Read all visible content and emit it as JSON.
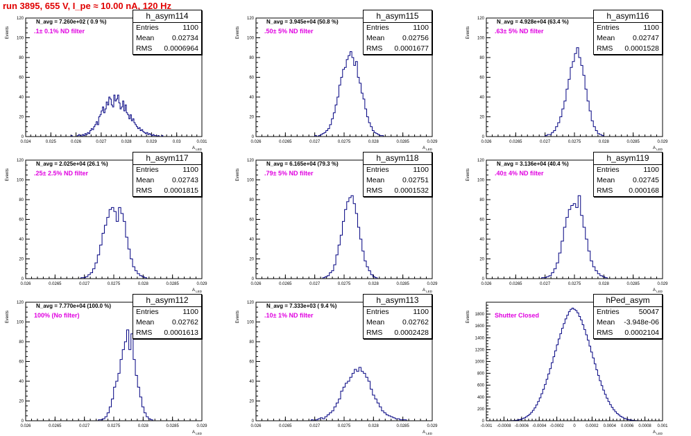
{
  "run_title": "run 3895,   655 V, I_pe ≈ 10.00 nA, 120 Hz",
  "axis_text": {
    "ylabel": "Events",
    "xlabel": "A",
    "xlabel_sub": "LED"
  },
  "chart_data": [
    {
      "type": "bar",
      "name": "h_asym114",
      "navg": "N_avg = 7.260e+02 ( 0.9 %)",
      "filter": ".1± 0.1% ND filter",
      "stats": {
        "entries": "1100",
        "mean": "0.02734",
        "rms": "0.0006964"
      },
      "xlim": [
        0.024,
        0.031
      ],
      "xticks": [
        "0.024",
        "0.025",
        "0.026",
        "0.027",
        "0.028",
        "0.029",
        "0.03",
        "0.031"
      ],
      "ylim": [
        0,
        120
      ],
      "yticks": [
        "0",
        "20",
        "40",
        "60",
        "80",
        "100",
        "120"
      ],
      "bins_x0": 0.0255,
      "bins_x1": 0.0295,
      "values": [
        0,
        0,
        0,
        0,
        0,
        0,
        1,
        0,
        0,
        0,
        0,
        1,
        2,
        1,
        0,
        2,
        1,
        3,
        2,
        4,
        3,
        6,
        8,
        7,
        10,
        12,
        15,
        12,
        20,
        22,
        26,
        30,
        24,
        28,
        35,
        32,
        40,
        38,
        32,
        30,
        42,
        36,
        38,
        42,
        34,
        28,
        30,
        36,
        26,
        32,
        24,
        22,
        18,
        22,
        16,
        18,
        14,
        12,
        10,
        8,
        9,
        6,
        7,
        5,
        4,
        3,
        4,
        2,
        3,
        2,
        1,
        2,
        1,
        1,
        0,
        1,
        0,
        0,
        1,
        0
      ]
    },
    {
      "type": "bar",
      "name": "h_asym115",
      "navg": "N_avg = 3.945e+04 (50.8 %)",
      "filter": ".50± 5% ND filter",
      "stats": {
        "entries": "1100",
        "mean": "0.02756",
        "rms": "0.0001677"
      },
      "xlim": [
        0.026,
        0.029
      ],
      "xticks": [
        "0.026",
        "0.0265",
        "0.027",
        "0.0275",
        "0.028",
        "0.0285",
        "0.029"
      ],
      "ylim": [
        0,
        120
      ],
      "yticks": [
        "0",
        "20",
        "40",
        "60",
        "80",
        "100",
        "120"
      ],
      "bins_x0": 0.027,
      "bins_x1": 0.0282,
      "values": [
        1,
        0,
        1,
        2,
        3,
        4,
        6,
        8,
        12,
        18,
        24,
        32,
        40,
        52,
        60,
        68,
        70,
        78,
        82,
        86,
        80,
        72,
        76,
        60,
        54,
        44,
        38,
        28,
        20,
        14,
        10,
        6,
        4,
        3,
        2,
        1,
        1,
        0
      ]
    },
    {
      "type": "bar",
      "name": "h_asym116",
      "navg": "N_avg = 4.928e+04 (63.4 %)",
      "filter": ".63± 5% ND filter",
      "stats": {
        "entries": "1100",
        "mean": "0.02747",
        "rms": "0.0001528"
      },
      "xlim": [
        0.026,
        0.029
      ],
      "xticks": [
        "0.026",
        "0.0265",
        "0.027",
        "0.0275",
        "0.028",
        "0.0285",
        "0.029"
      ],
      "ylim": [
        0,
        120
      ],
      "yticks": [
        "0",
        "20",
        "40",
        "60",
        "80",
        "100",
        "120"
      ],
      "bins_x0": 0.027,
      "bins_x1": 0.028,
      "values": [
        1,
        2,
        2,
        4,
        6,
        10,
        14,
        20,
        28,
        36,
        48,
        58,
        70,
        76,
        84,
        90,
        80,
        72,
        62,
        48,
        36,
        26,
        16,
        10,
        6,
        3,
        2,
        1
      ]
    },
    {
      "type": "bar",
      "name": "h_asym117",
      "navg": "N_avg = 2.025e+04 (26.1 %)",
      "filter": ".25± 2.5% ND filter",
      "stats": {
        "entries": "1100",
        "mean": "0.02743",
        "rms": "0.0001815"
      },
      "xlim": [
        0.026,
        0.029
      ],
      "xticks": [
        "0.026",
        "0.0265",
        "0.027",
        "0.0275",
        "0.028",
        "0.0285",
        "0.029"
      ],
      "ylim": [
        0,
        120
      ],
      "yticks": [
        "0",
        "20",
        "40",
        "60",
        "80",
        "100",
        "120"
      ],
      "bins_x0": 0.0269,
      "bins_x1": 0.0281,
      "values": [
        0,
        1,
        1,
        2,
        4,
        6,
        10,
        16,
        24,
        34,
        46,
        54,
        62,
        70,
        72,
        68,
        58,
        72,
        66,
        58,
        42,
        30,
        20,
        12,
        8,
        5,
        3,
        2,
        1,
        0
      ]
    },
    {
      "type": "bar",
      "name": "h_asym118",
      "navg": "N_avg = 6.165e+04 (79.3 %)",
      "filter": ".79± 5% ND filter",
      "stats": {
        "entries": "1100",
        "mean": "0.02751",
        "rms": "0.0001532"
      },
      "xlim": [
        0.026,
        0.029
      ],
      "xticks": [
        "0.026",
        "0.0265",
        "0.027",
        "0.0275",
        "0.028",
        "0.0285",
        "0.029"
      ],
      "ylim": [
        0,
        120
      ],
      "yticks": [
        "0",
        "20",
        "40",
        "60",
        "80",
        "100",
        "120"
      ],
      "bins_x0": 0.0271,
      "bins_x1": 0.0281,
      "values": [
        0,
        1,
        2,
        3,
        6,
        8,
        14,
        24,
        34,
        44,
        58,
        70,
        78,
        82,
        84,
        76,
        66,
        52,
        40,
        28,
        18,
        12,
        8,
        4,
        2,
        1,
        0
      ]
    },
    {
      "type": "bar",
      "name": "h_asym119",
      "navg": "N_avg = 3.136e+04 (40.4 %)",
      "filter": ".40± 4% ND filter",
      "stats": {
        "entries": "1100",
        "mean": "0.02745",
        "rms": "0.000168"
      },
      "xlim": [
        0.026,
        0.029
      ],
      "xticks": [
        "0.026",
        "0.0265",
        "0.027",
        "0.0275",
        "0.028",
        "0.0285",
        "0.029"
      ],
      "ylim": [
        0,
        120
      ],
      "yticks": [
        "0",
        "20",
        "40",
        "60",
        "80",
        "100",
        "120"
      ],
      "bins_x0": 0.0269,
      "bins_x1": 0.0281,
      "values": [
        0,
        1,
        1,
        2,
        3,
        6,
        10,
        16,
        26,
        38,
        52,
        62,
        70,
        74,
        76,
        72,
        84,
        64,
        52,
        40,
        28,
        18,
        12,
        8,
        5,
        3,
        2,
        1,
        0
      ]
    },
    {
      "type": "bar",
      "name": "h_asym112",
      "navg": "N_avg = 7.770e+04 (100.0 %)",
      "filter": "100% (No filter)",
      "stats": {
        "entries": "1100",
        "mean": "0.02762",
        "rms": "0.0001613"
      },
      "xlim": [
        0.026,
        0.029
      ],
      "xticks": [
        "0.026",
        "0.0265",
        "0.027",
        "0.0275",
        "0.028",
        "0.0285",
        "0.029"
      ],
      "ylim": [
        0,
        120
      ],
      "yticks": [
        "0",
        "20",
        "40",
        "60",
        "80",
        "100",
        "120"
      ],
      "bins_x0": 0.0272,
      "bins_x1": 0.0282,
      "values": [
        0,
        1,
        1,
        2,
        4,
        8,
        14,
        22,
        34,
        40,
        48,
        62,
        72,
        80,
        92,
        72,
        88,
        62,
        46,
        34,
        24,
        14,
        8,
        4,
        2,
        1,
        0
      ]
    },
    {
      "type": "bar",
      "name": "h_asym113",
      "navg": "N_avg = 7.333e+03 ( 9.4 %)",
      "filter": ".10± 1% ND filter",
      "stats": {
        "entries": "1100",
        "mean": "0.02762",
        "rms": "0.0002428"
      },
      "xlim": [
        0.026,
        0.029
      ],
      "xticks": [
        "0.026",
        "0.0265",
        "0.027",
        "0.0275",
        "0.028",
        "0.0285",
        "0.029"
      ],
      "ylim": [
        0,
        120
      ],
      "yticks": [
        "0",
        "20",
        "40",
        "60",
        "80",
        "100",
        "120"
      ],
      "bins_x0": 0.0269,
      "bins_x1": 0.0286,
      "values": [
        0,
        1,
        0,
        1,
        2,
        3,
        2,
        4,
        6,
        8,
        10,
        14,
        18,
        22,
        30,
        34,
        38,
        40,
        44,
        48,
        52,
        50,
        54,
        50,
        48,
        44,
        40,
        32,
        26,
        22,
        18,
        14,
        10,
        8,
        6,
        5,
        4,
        3,
        2,
        2,
        1,
        1,
        1,
        0
      ]
    },
    {
      "type": "bar",
      "name": "hPed_asym",
      "navg": "",
      "filter": "Shutter Closed",
      "stats": {
        "entries": "50047",
        "mean": "-3.948e-06",
        "rms": "0.0002104"
      },
      "xlim": [
        -0.001,
        0.001
      ],
      "xticks": [
        "-0.001",
        "-0.0008",
        "-0.0006",
        "-0.0004",
        "-0.0002",
        "0",
        "0.0002",
        "0.0004",
        "0.0006",
        "0.0008",
        "0.001"
      ],
      "ylim": [
        0,
        2000
      ],
      "yticks": [
        "0",
        "200",
        "400",
        "600",
        "800",
        "1000",
        "1200",
        "1400",
        "1600",
        "1800"
      ],
      "bins_x0": -0.00075,
      "bins_x1": 0.00075,
      "values": [
        1,
        2,
        3,
        5,
        8,
        12,
        18,
        26,
        36,
        50,
        66,
        86,
        110,
        140,
        176,
        218,
        268,
        324,
        386,
        456,
        532,
        612,
        700,
        790,
        880,
        980,
        1080,
        1180,
        1280,
        1380,
        1470,
        1560,
        1640,
        1720,
        1780,
        1840,
        1880,
        1900,
        1880,
        1860,
        1820,
        1760,
        1700,
        1620,
        1540,
        1450,
        1360,
        1260,
        1160,
        1060,
        960,
        860,
        766,
        676,
        594,
        516,
        446,
        382,
        324,
        272,
        226,
        186,
        152,
        122,
        98,
        76,
        58,
        44,
        32,
        24,
        16,
        11,
        7,
        5,
        3,
        2,
        1
      ]
    }
  ]
}
